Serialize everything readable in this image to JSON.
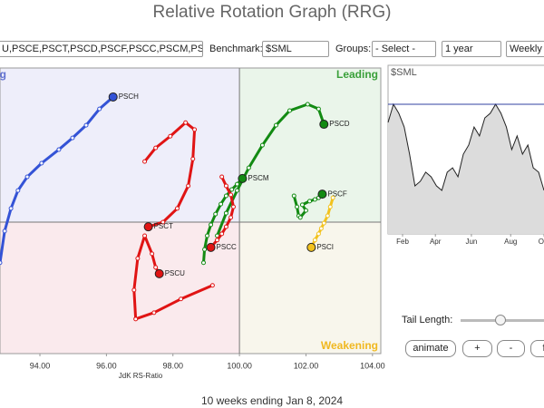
{
  "header": {
    "title": "Relative Rotation Graph (RRG)"
  },
  "toolbar": {
    "symbols": "U,PSCE,PSCT,PSCD,PSCF,PSCC,PSCM,PS(",
    "benchmark_label": "Benchmark:",
    "benchmark": "$SML",
    "groups_label": "Groups:",
    "groups": "- Select -",
    "period": "1 year",
    "frequency": "Weekly"
  },
  "chart_data": [
    {
      "type": "line",
      "x_label": "JdK RS-Ratio",
      "quadrants": {
        "improving": "Improving",
        "leading": "Leading",
        "weakening": "Weakening"
      },
      "xlim": [
        92.8,
        104.25
      ],
      "ylim": [
        96.05,
        104.63
      ],
      "center": [
        100,
        100
      ],
      "xticks": [
        {
          "value": 94,
          "label": "94.00"
        },
        {
          "value": 96,
          "label": "96.00"
        },
        {
          "value": 98,
          "label": "98.00"
        },
        {
          "value": 100,
          "label": "100.00"
        },
        {
          "value": 102,
          "label": "102.00"
        },
        {
          "value": 104,
          "label": "104.00"
        }
      ],
      "series": [
        {
          "name": "PSCH",
          "color": "#3453d6",
          "x": [
            92.8,
            92.94,
            93.13,
            93.34,
            93.62,
            94.05,
            94.57,
            94.98,
            95.39,
            95.79,
            96.2
          ],
          "values": [
            98.78,
            99.73,
            100.41,
            100.95,
            101.36,
            101.77,
            102.18,
            102.53,
            102.91,
            103.4,
            103.76
          ]
        },
        {
          "name": "PSCT",
          "color": "#e01414",
          "x": [
            97.15,
            97.48,
            97.92,
            98.38,
            98.65,
            98.6,
            98.46,
            98.13,
            97.7,
            97.26
          ],
          "values": [
            101.82,
            102.23,
            102.58,
            102.99,
            102.78,
            101.9,
            101.09,
            100.41,
            100.0,
            99.86
          ]
        },
        {
          "name": "PSCU",
          "color": "#e01414",
          "x": [
            99.19,
            98.24,
            97.43,
            96.88,
            96.83,
            96.94,
            97.15,
            97.37,
            97.48,
            97.59
          ],
          "values": [
            98.1,
            97.69,
            97.28,
            97.09,
            97.96,
            98.91,
            99.59,
            99.05,
            98.64,
            98.45
          ]
        },
        {
          "name": "PSCD",
          "color": "#128a12",
          "x": [
            99.33,
            99.6,
            99.93,
            100.28,
            100.69,
            101.1,
            101.51,
            102.05,
            102.38,
            102.54
          ],
          "values": [
            99.59,
            100.27,
            100.95,
            101.63,
            102.31,
            102.91,
            103.35,
            103.54,
            103.4,
            102.94
          ]
        },
        {
          "name": "PSCM",
          "color": "#128a12",
          "x": [
            98.92,
            98.95,
            99.03,
            99.14,
            99.28,
            99.44,
            99.6,
            99.77,
            99.93,
            100.09
          ],
          "values": [
            98.78,
            99.18,
            99.59,
            99.92,
            100.24,
            100.54,
            100.79,
            100.98,
            101.14,
            101.31
          ]
        },
        {
          "name": "PSCF",
          "color": "#128a12",
          "x": [
            101.64,
            101.73,
            101.78,
            101.83,
            102.0,
            101.89,
            102.11,
            102.27,
            102.38,
            102.49
          ],
          "values": [
            100.79,
            100.46,
            100.19,
            100.14,
            100.35,
            100.52,
            100.63,
            100.68,
            100.73,
            100.84
          ]
        },
        {
          "name": "PSCI",
          "color": "#f2c21e",
          "x": [
            102.81,
            102.73,
            102.65,
            102.54,
            102.46,
            102.38,
            102.27,
            102.16
          ],
          "values": [
            100.73,
            100.46,
            100.19,
            99.97,
            99.81,
            99.65,
            99.46,
            99.24
          ]
        },
        {
          "name": "PSCC",
          "color": "#e01414",
          "x": [
            99.47,
            99.6,
            99.74,
            99.82,
            99.74,
            99.6,
            99.47,
            99.33,
            99.14
          ],
          "values": [
            101.36,
            101.09,
            100.82,
            100.46,
            100.14,
            99.86,
            99.65,
            99.46,
            99.24
          ]
        }
      ]
    },
    {
      "type": "area",
      "title": "$SML",
      "color": "#222222",
      "reference": 76.9,
      "reference_color": "#3040a0",
      "xlim": [
        0,
        29
      ],
      "ylim": [
        0,
        100
      ],
      "xticks": [
        {
          "value": 2.7,
          "label": "Feb"
        },
        {
          "value": 8.8,
          "label": "Apr"
        },
        {
          "value": 15.5,
          "label": "Jun"
        },
        {
          "value": 22.8,
          "label": "Aug"
        },
        {
          "value": 29,
          "label": "Oct"
        }
      ],
      "values": [
        66.1,
        76.9,
        71.5,
        63.4,
        47.3,
        28.5,
        31.2,
        36.6,
        33.9,
        28.5,
        25.8,
        36.6,
        39.2,
        33.9,
        47.3,
        52.7,
        63.4,
        58.1,
        68.8,
        71.5,
        76.9,
        71.5,
        63.4,
        50.0,
        58.1,
        47.3,
        52.7,
        39.2,
        36.6,
        25.8
      ]
    }
  ],
  "controls": {
    "tail_label": "Tail Length:",
    "buttons": [
      "animate",
      "+",
      "-",
      "f"
    ]
  },
  "footer": {
    "caption": "10 weeks ending Jan 8, 2024"
  }
}
